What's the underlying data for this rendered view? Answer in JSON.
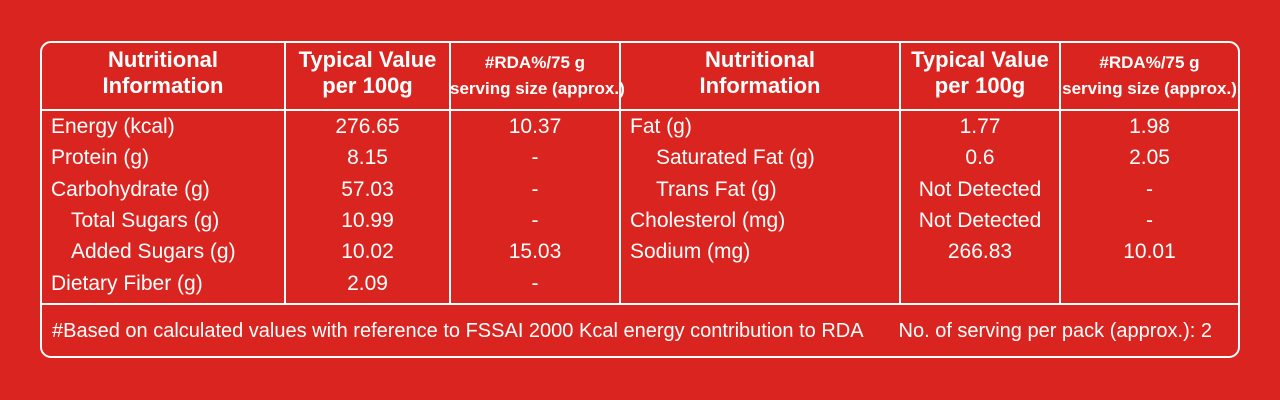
{
  "table": {
    "header": [
      [
        "Nutritional",
        "Information"
      ],
      [
        "Typical Value",
        "per 100g"
      ],
      [
        "#RDA%/75 g",
        "serving size (approx.)"
      ],
      [
        "Nutritional",
        "Information"
      ],
      [
        "Typical Value",
        "per 100g"
      ],
      [
        "#RDA%/75 g",
        "serving size (approx.)"
      ]
    ],
    "left_rows": [
      [
        "Energy (kcal)",
        "276.65",
        "10.37"
      ],
      [
        "Protein (g)",
        "8.15",
        "-"
      ],
      [
        "Carbohydrate (g)",
        "57.03",
        "-"
      ],
      [
        "Total Sugars (g)",
        "10.99",
        "-"
      ],
      [
        "Added Sugars (g)",
        "10.02",
        "15.03"
      ],
      [
        "Dietary Fiber (g)",
        "2.09",
        "-"
      ]
    ],
    "right_rows": [
      [
        "Fat (g)",
        "1.77",
        "1.98"
      ],
      [
        "Saturated Fat (g)",
        "0.6",
        "2.05"
      ],
      [
        "Trans Fat (g)",
        "Not Detected",
        "-"
      ],
      [
        "Cholesterol (mg)",
        "Not Detected",
        "-"
      ],
      [
        "Sodium (mg)",
        "266.83",
        "10.01"
      ]
    ],
    "footer": {
      "note": "#Based on calculated values with reference to FSSAI 2000 Kcal energy contribution to RDA",
      "servings": "No. of serving per pack (approx.): 2"
    }
  }
}
